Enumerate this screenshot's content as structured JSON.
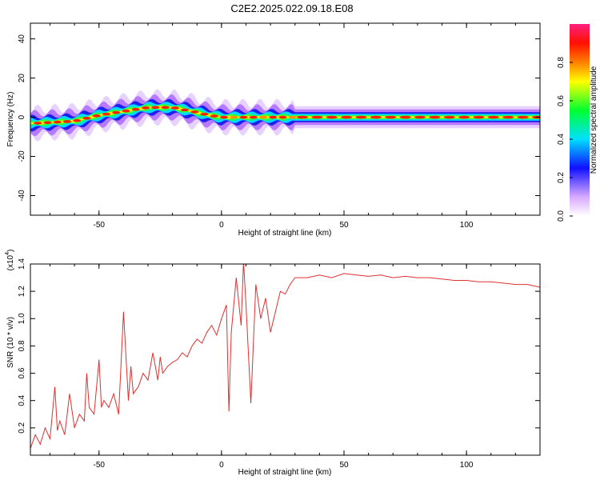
{
  "title": "C2E2.2025.022.09.18.E08",
  "chart_data": [
    {
      "type": "heatmap",
      "xlabel": "Height of straight line (km)",
      "ylabel": "Frequency (Hz)",
      "xlim": [
        -78,
        130
      ],
      "ylim": [
        -50,
        48
      ],
      "xticks": [
        -50,
        0,
        50,
        100
      ],
      "yticks": [
        -40,
        -20,
        0,
        20,
        40
      ],
      "ridge_x": [
        -75,
        -60,
        -50,
        -40,
        -30,
        -20,
        -12,
        -5,
        0,
        5,
        10,
        20,
        30,
        130
      ],
      "ridge_frequency": [
        -3,
        -2,
        1,
        3,
        5,
        5,
        3,
        1,
        0,
        0,
        0,
        0,
        0,
        0
      ],
      "colorbar": {
        "label": "Normalized spectral amplitude",
        "range": [
          0.0,
          1.0
        ],
        "ticks": [
          "0.0",
          "0.2",
          "0.4",
          "0.6",
          "0.8"
        ],
        "stops": [
          {
            "value": 0.0,
            "color": "#ffffff"
          },
          {
            "value": 0.1,
            "color": "#d8a8ff"
          },
          {
            "value": 0.25,
            "color": "#1010ff"
          },
          {
            "value": 0.4,
            "color": "#00e0ff"
          },
          {
            "value": 0.55,
            "color": "#00ff30"
          },
          {
            "value": 0.7,
            "color": "#ffff00"
          },
          {
            "value": 0.8,
            "color": "#ff8000"
          },
          {
            "value": 0.9,
            "color": "#ff1000"
          },
          {
            "value": 1.0,
            "color": "#ff2080"
          }
        ]
      }
    },
    {
      "type": "line",
      "xlabel": "Height of straight line (km)",
      "ylabel": "SNR (10 * v/v)",
      "y_multiplier": "(x10",
      "y_multiplier_exp": "4",
      "xlim": [
        -78,
        130
      ],
      "ylim": [
        0.0,
        1.4
      ],
      "xticks": [
        -50,
        0,
        50,
        100
      ],
      "yticks": [
        "0.2",
        "0.4",
        "0.6",
        "0.8",
        "1.0",
        "1.2",
        "1.4"
      ],
      "series_color": "#e03030",
      "x": [
        -78,
        -76,
        -74,
        -72,
        -70,
        -68,
        -67,
        -66,
        -64,
        -62,
        -60,
        -58,
        -56,
        -55,
        -54,
        -52,
        -50,
        -49,
        -48,
        -46,
        -44,
        -42,
        -40,
        -38,
        -37,
        -36,
        -34,
        -32,
        -30,
        -28,
        -26,
        -25,
        -24,
        -22,
        -20,
        -18,
        -16,
        -14,
        -12,
        -10,
        -8,
        -6,
        -4,
        -2,
        0,
        2,
        3,
        4,
        6,
        8,
        9,
        10,
        12,
        14,
        16,
        18,
        20,
        22,
        24,
        26,
        28,
        30,
        35,
        40,
        45,
        50,
        55,
        60,
        65,
        70,
        75,
        80,
        85,
        90,
        95,
        100,
        105,
        110,
        115,
        120,
        125,
        130
      ],
      "y": [
        0.05,
        0.15,
        0.08,
        0.2,
        0.12,
        0.5,
        0.18,
        0.25,
        0.15,
        0.45,
        0.2,
        0.3,
        0.25,
        0.6,
        0.35,
        0.3,
        0.7,
        0.35,
        0.4,
        0.35,
        0.45,
        0.3,
        1.05,
        0.4,
        0.65,
        0.45,
        0.5,
        0.6,
        0.55,
        0.75,
        0.55,
        0.72,
        0.6,
        0.65,
        0.68,
        0.7,
        0.75,
        0.72,
        0.8,
        0.85,
        0.82,
        0.9,
        0.95,
        0.88,
        1.0,
        1.1,
        0.32,
        0.9,
        1.3,
        0.95,
        1.42,
        1.1,
        0.38,
        1.25,
        1.0,
        1.15,
        0.9,
        1.05,
        1.2,
        1.18,
        1.25,
        1.3,
        1.3,
        1.32,
        1.3,
        1.33,
        1.32,
        1.31,
        1.32,
        1.3,
        1.31,
        1.3,
        1.3,
        1.29,
        1.28,
        1.28,
        1.27,
        1.27,
        1.26,
        1.25,
        1.25,
        1.23
      ]
    }
  ]
}
